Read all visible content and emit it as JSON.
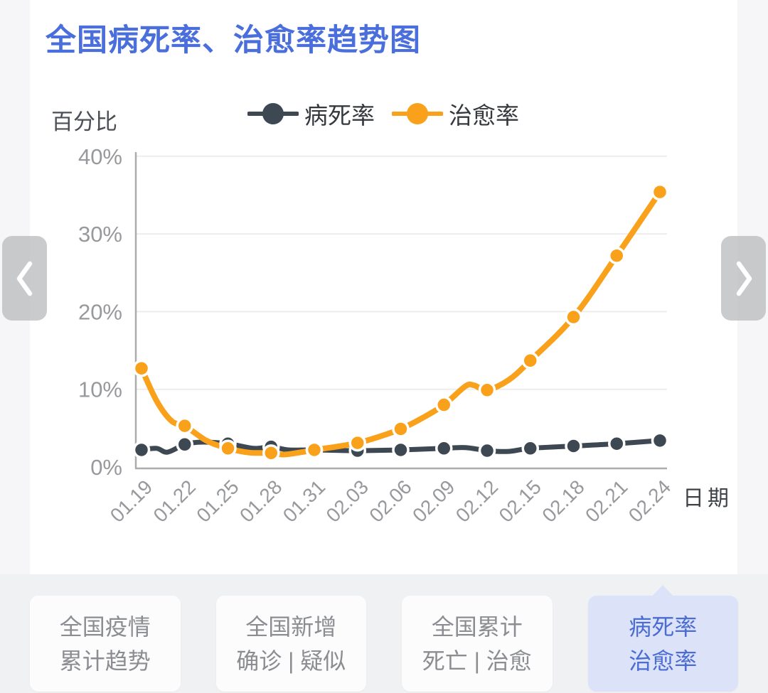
{
  "title": "全国病死率、治愈率趋势图",
  "chart_data": {
    "type": "line",
    "title": "全国病死率、治愈率趋势图",
    "ylabel": "百分比",
    "xlabel": "日期",
    "categories": [
      "01.19",
      "01.22",
      "01.25",
      "01.28",
      "01.31",
      "02.03",
      "02.06",
      "02.09",
      "02.12",
      "02.15",
      "02.18",
      "02.21",
      "02.24"
    ],
    "yticks": [
      "0%",
      "10%",
      "20%",
      "30%",
      "40%"
    ],
    "ylim": [
      0,
      40
    ],
    "grid": true,
    "legend_position": "top",
    "x_tick_rotation": -45,
    "series": [
      {
        "name": "病死率",
        "color": "#3D4852",
        "values": [
          2.2,
          2.9,
          3.0,
          2.6,
          2.2,
          2.1,
          2.2,
          2.4,
          2.1,
          2.4,
          2.7,
          3.0,
          3.4
        ],
        "detail_points": [
          [
            0,
            2.2
          ],
          [
            0.35,
            2.4
          ],
          [
            0.6,
            1.9
          ],
          [
            1,
            2.9
          ],
          [
            1.4,
            3.2
          ],
          [
            2,
            3.0
          ],
          [
            2.6,
            2.4
          ],
          [
            3,
            2.6
          ],
          [
            3.4,
            2.2
          ],
          [
            4,
            2.2
          ],
          [
            5,
            2.1
          ],
          [
            6,
            2.2
          ],
          [
            7,
            2.4
          ],
          [
            7.5,
            2.5
          ],
          [
            8,
            2.1
          ],
          [
            8.5,
            2.0
          ],
          [
            9,
            2.4
          ],
          [
            10,
            2.7
          ],
          [
            11,
            3.0
          ],
          [
            12,
            3.4
          ]
        ]
      },
      {
        "name": "治愈率",
        "color": "#F9A11B",
        "values": [
          12.7,
          5.3,
          2.4,
          1.8,
          2.2,
          3.1,
          4.9,
          8.0,
          9.9,
          13.7,
          19.3,
          27.2,
          35.4
        ],
        "detail_points": [
          [
            0,
            12.7
          ],
          [
            0.35,
            8.5
          ],
          [
            0.7,
            5.9
          ],
          [
            1,
            5.3
          ],
          [
            1.5,
            3.4
          ],
          [
            2,
            2.4
          ],
          [
            2.5,
            1.85
          ],
          [
            3,
            1.8
          ],
          [
            3.3,
            1.6
          ],
          [
            3.7,
            1.9
          ],
          [
            4,
            2.2
          ],
          [
            4.5,
            2.6
          ],
          [
            5,
            3.1
          ],
          [
            5.5,
            3.9
          ],
          [
            6,
            4.9
          ],
          [
            6.5,
            6.3
          ],
          [
            7,
            8.0
          ],
          [
            7.5,
            10.4
          ],
          [
            7.7,
            10.5
          ],
          [
            8,
            9.9
          ],
          [
            8.5,
            11.2
          ],
          [
            9,
            13.7
          ],
          [
            10,
            19.3
          ],
          [
            11,
            27.2
          ],
          [
            12,
            35.4
          ]
        ]
      }
    ]
  },
  "tabs": {
    "items": [
      {
        "id": "national-cumulative-trend",
        "line1": "全国疫情",
        "line2": "累计趋势",
        "selected": false
      },
      {
        "id": "national-new-confirmed-suspected",
        "line1": "全国新增",
        "line2": "确诊 | 疑似",
        "selected": false
      },
      {
        "id": "national-cumulative-death-cure",
        "line1": "全国累计",
        "line2": "死亡 | 治愈",
        "selected": false
      },
      {
        "id": "fatality-cure-rate",
        "line1": "病死率",
        "line2": "治愈率",
        "selected": true
      }
    ]
  },
  "colors": {
    "title_blue": "#4A6EDB",
    "fatality_line": "#3D4852",
    "cure_line": "#F9A11B",
    "selected_tab_bg": "#DCE3F9",
    "selected_tab_text": "#4B6CD2",
    "tab_text": "#8B8D91",
    "axis_gray": "#ACACAC",
    "grid_gray": "#EDEDED",
    "tick_text": "#97999C"
  }
}
